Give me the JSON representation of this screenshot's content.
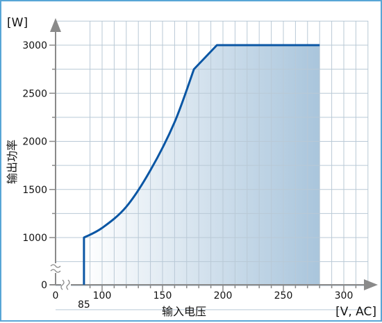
{
  "chart_data": {
    "type": "area",
    "y_unit_label": "[W]",
    "x_unit_label": "[V, AC]",
    "xlabel": "输入电压",
    "ylabel": "输出功率",
    "xlim": [
      75,
      310
    ],
    "ylim": [
      0,
      3250
    ],
    "x_ticks": [
      {
        "value": 0,
        "label": "0"
      },
      {
        "value": 85,
        "label": "85"
      },
      {
        "value": 100,
        "label": "100"
      },
      {
        "value": 150,
        "label": "150"
      },
      {
        "value": 200,
        "label": "200"
      },
      {
        "value": 250,
        "label": "250"
      },
      {
        "value": 300,
        "label": "300"
      }
    ],
    "y_ticks": [
      {
        "value": 0,
        "label": "0"
      },
      {
        "value": 1000,
        "label": "1000"
      },
      {
        "value": 1500,
        "label": "1500"
      },
      {
        "value": 2000,
        "label": "2000"
      },
      {
        "value": 2500,
        "label": "2500"
      },
      {
        "value": 3000,
        "label": "3000"
      }
    ],
    "axis_break": true,
    "grid": true,
    "series": [
      {
        "x": [
          85,
          85,
          100,
          120,
          140,
          160,
          176,
          195,
          280
        ],
        "y": [
          0,
          1000,
          1100,
          1320,
          1700,
          2200,
          2750,
          3000,
          3000
        ],
        "color": "#0a56a4"
      }
    ],
    "fill_colors": {
      "from": "#ffffff",
      "to": "#a9c5dc"
    },
    "axis_color": "#8a8a8a"
  }
}
